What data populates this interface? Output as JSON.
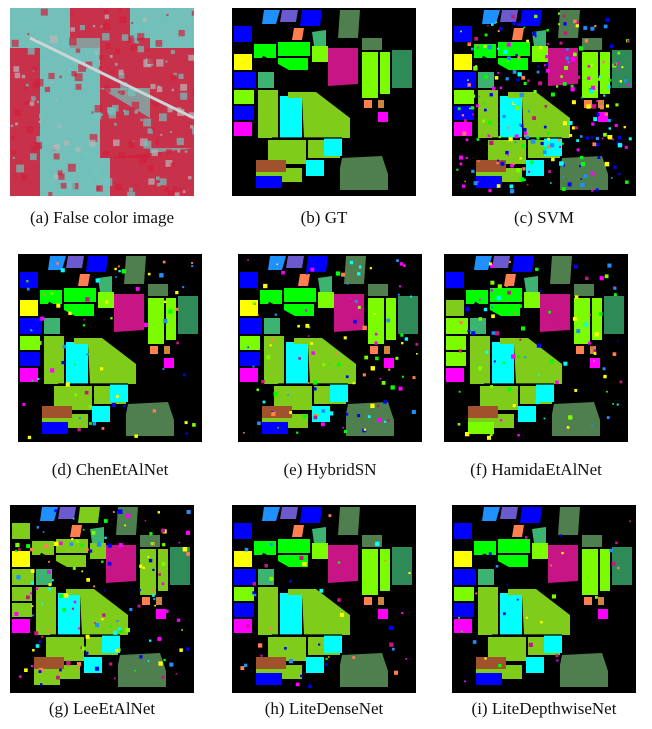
{
  "figure": {
    "captions": [
      "(a) False color image",
      "(b) GT",
      "(c) SVM",
      "(d) ChenEtAlNet",
      "(e) HybridSN",
      "(f) HamidaEtAlNet",
      "(g) LeeEtAlNet",
      "(h) LiteDenseNet",
      "(i) LiteDepthwiseNet"
    ],
    "colors": {
      "background": "#000000",
      "alfalfa": "#ffff00",
      "corn_notill": "#0000ff",
      "corn_mintill": "#ff7f50",
      "corn": "#00ff00",
      "grass_pasture": "#ff00ff",
      "grass_trees": "#00ffff",
      "grass_pasture_mowed": "#3cb371",
      "hay_windrowed": "#a0522d",
      "oats": "#cd853f",
      "soybean_notill": "#7cfc00",
      "soybean_mintill": "#7fcc1a",
      "soybean_clean": "#c71585",
      "wheat": "#2e8b57",
      "woods": "#4f7f4f",
      "buildings": "#6a5acd",
      "stone_steel": "#1e90ff",
      "false_color_red": "#d21f3c",
      "false_color_cyan": "#6fc5c0"
    }
  }
}
